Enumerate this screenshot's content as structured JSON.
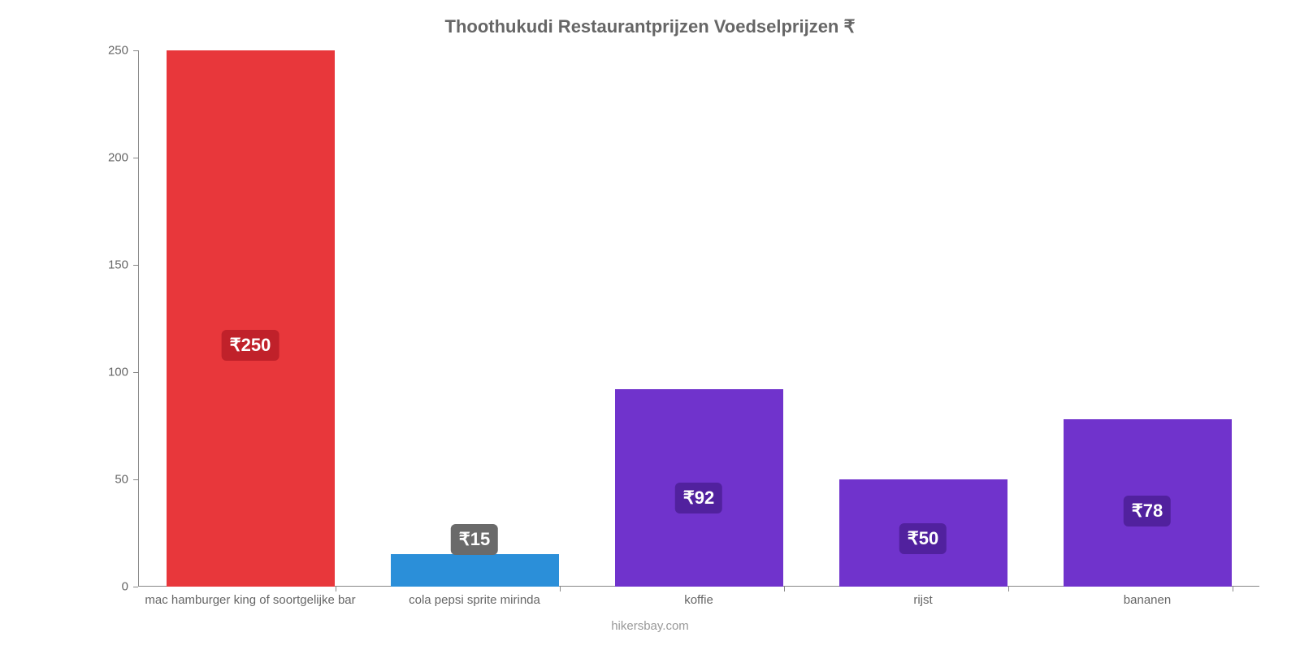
{
  "chart": {
    "type": "bar",
    "title": "Thoothukudi Restaurantprijzen Voedselprijzen ₹",
    "title_fontsize": 22,
    "title_color": "#666666",
    "credit": "hikersbay.com",
    "background_color": "#ffffff",
    "axis_color": "#888888",
    "tick_label_color": "#666666",
    "tick_fontsize": 15,
    "ylim": [
      0,
      250
    ],
    "ytick_step": 50,
    "yticks": [
      0,
      50,
      100,
      150,
      200,
      250
    ],
    "bar_width": 0.75,
    "categories": [
      "mac hamburger king of soortgelijke bar",
      "cola pepsi sprite mirinda",
      "koffie",
      "rijst",
      "bananen"
    ],
    "values": [
      250,
      15,
      92,
      50,
      78
    ],
    "value_labels": [
      "₹250",
      "₹15",
      "₹92",
      "₹50",
      "₹78"
    ],
    "bar_colors": [
      "#e8373b",
      "#2b8fd9",
      "#7033cc",
      "#7033cc",
      "#7033cc"
    ],
    "badge_colors": [
      "#c0212a",
      "#6a6a6a",
      "#51219e",
      "#51219e",
      "#51219e"
    ],
    "badge_fontsize": 22,
    "label_y_for_short_bar_threshold": 30
  }
}
